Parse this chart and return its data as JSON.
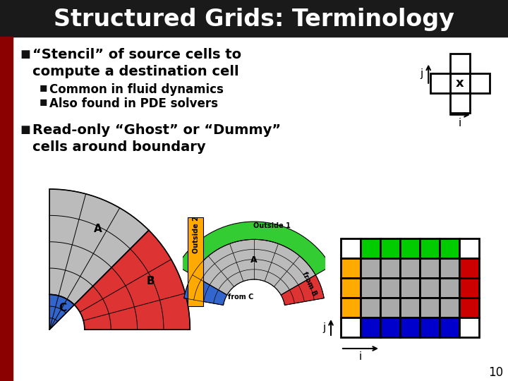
{
  "title": "Structured Grids: Terminology",
  "title_bg": "#1a1a1a",
  "title_color": "#ffffff",
  "slide_bg": "#ffffff",
  "left_bar_color": "#8b0000",
  "bullet1_line1": "“Stencil” of source cells to",
  "bullet1_line2": "compute a destination cell",
  "sub1a": "Common in fluid dynamics",
  "sub1b": "Also found in PDE solvers",
  "bullet2_line1": "Read-only “Ghost” or “Dummy”",
  "bullet2_line2": "cells around boundary",
  "text_color": "#000000",
  "page_number": "10",
  "ghost_grid": {
    "rows": 5,
    "cols": 7,
    "top_row_color": "#00cc00",
    "left_col_color": "#ffaa00",
    "right_col_color": "#cc0000",
    "bottom_row_color": "#0000cc",
    "inner_color": "#aaaaaa",
    "corner_color": "#ffffff",
    "outline": "#000000"
  },
  "fan1": {
    "A_color": "#bbbbbb",
    "B_color": "#dd3333",
    "C_color": "#3366cc",
    "grid_color": "#000000"
  },
  "fan2": {
    "A_color": "#bbbbbb",
    "fromB_color": "#dd3333",
    "fromC_color": "#3366cc",
    "outside1_color": "#33cc33",
    "outside2_color": "#ffaa00",
    "grid_color": "#000000"
  }
}
